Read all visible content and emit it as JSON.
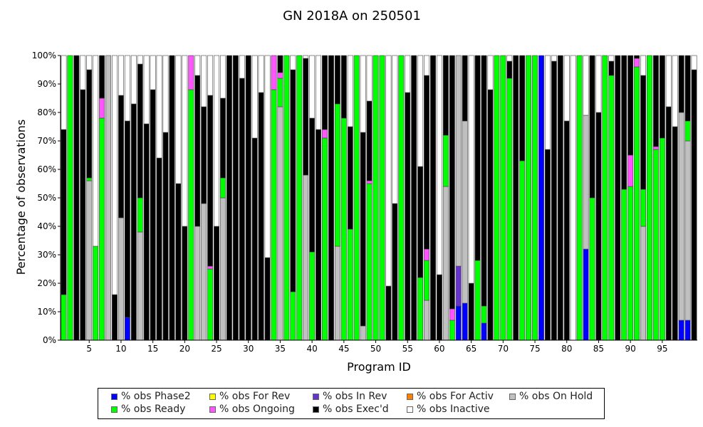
{
  "chart_data": {
    "type": "bar",
    "stacked": true,
    "title": "GN 2018A on 250501",
    "xlabel": "Program ID",
    "ylabel": "Percentage of observations",
    "ylim": [
      0,
      100
    ],
    "yticks": [
      "0%",
      "10%",
      "20%",
      "30%",
      "40%",
      "50%",
      "60%",
      "70%",
      "80%",
      "90%",
      "100%"
    ],
    "xticks": [
      "5",
      "10",
      "15",
      "20",
      "25",
      "30",
      "35",
      "40",
      "45",
      "50",
      "55",
      "60",
      "65",
      "70",
      "75",
      "80",
      "85",
      "90",
      "95"
    ],
    "grid": false,
    "legend_position": "bottom",
    "series": [
      {
        "key": "ph2",
        "name": "% obs Phase2",
        "color": "#0000ff"
      },
      {
        "key": "frv",
        "name": "% obs For Rev",
        "color": "#ffff00"
      },
      {
        "key": "inr",
        "name": "% obs In Rev",
        "color": "#6633cc"
      },
      {
        "key": "fac",
        "name": "% obs For Activ",
        "color": "#ff8000"
      },
      {
        "key": "hold",
        "name": "% obs On Hold",
        "color": "#c0c0c0"
      },
      {
        "key": "rdy",
        "name": "% obs Ready",
        "color": "#00ff00"
      },
      {
        "key": "ong",
        "name": "% obs Ongoing",
        "color": "#ff55ff"
      },
      {
        "key": "exe",
        "name": "% obs Exec'd",
        "color": "#000000"
      },
      {
        "key": "ina",
        "name": "% obs Inactive",
        "color": "#ffffff"
      }
    ],
    "programs": [
      {
        "id": 1,
        "rdy": 16,
        "ina": 26,
        "exe": 58
      },
      {
        "id": 2,
        "rdy": 100
      },
      {
        "id": 3,
        "exe": 100
      },
      {
        "id": 4,
        "ina": 12,
        "exe": 88
      },
      {
        "id": 5,
        "hold": 56,
        "rdy": 1,
        "ina": 5,
        "exe": 38
      },
      {
        "id": 6,
        "rdy": 33,
        "ina": 67
      },
      {
        "id": 7,
        "rdy": 78,
        "ong": 7,
        "exe": 15
      },
      {
        "id": 8,
        "hold": 100
      },
      {
        "id": 9,
        "ina": 84,
        "exe": 16
      },
      {
        "id": 10,
        "hold": 43,
        "ina": 14,
        "exe": 43
      },
      {
        "id": 11,
        "ph2": 8,
        "ina": 23,
        "exe": 69
      },
      {
        "id": 12,
        "ina": 17,
        "exe": 83
      },
      {
        "id": 13,
        "hold": 38,
        "rdy": 12,
        "ina": 3,
        "exe": 47
      },
      {
        "id": 14,
        "ina": 24,
        "exe": 76
      },
      {
        "id": 15,
        "ina": 12,
        "exe": 88
      },
      {
        "id": 16,
        "ina": 36,
        "exe": 64
      },
      {
        "id": 17,
        "ina": 27,
        "exe": 73
      },
      {
        "id": 18,
        "exe": 100
      },
      {
        "id": 19,
        "ina": 45,
        "exe": 55
      },
      {
        "id": 20,
        "ina": 60,
        "exe": 40
      },
      {
        "id": 21,
        "rdy": 88,
        "ong": 12
      },
      {
        "id": 22,
        "hold": 40,
        "ina": 7,
        "exe": 53
      },
      {
        "id": 23,
        "hold": 48,
        "ina": 18,
        "exe": 34
      },
      {
        "id": 24,
        "rdy": 25,
        "ong": 1,
        "ina": 14,
        "exe": 60
      },
      {
        "id": 25,
        "ina": 60,
        "exe": 40
      },
      {
        "id": 26,
        "hold": 50,
        "rdy": 7,
        "ina": 15,
        "exe": 28
      },
      {
        "id": 27,
        "exe": 100
      },
      {
        "id": 28,
        "exe": 100
      },
      {
        "id": 29,
        "ina": 8,
        "exe": 92
      },
      {
        "id": 30,
        "exe": 100
      },
      {
        "id": 31,
        "ina": 29,
        "exe": 71
      },
      {
        "id": 32,
        "ina": 13,
        "exe": 87
      },
      {
        "id": 33,
        "ina": 71,
        "exe": 29
      },
      {
        "id": 34,
        "rdy": 88,
        "ong": 12
      },
      {
        "id": 35,
        "hold": 82,
        "rdy": 10,
        "ong": 2,
        "exe": 6
      },
      {
        "id": 36,
        "rdy": 100
      },
      {
        "id": 37,
        "rdy": 17,
        "ina": 5,
        "exe": 78
      },
      {
        "id": 38,
        "rdy": 100
      },
      {
        "id": 39,
        "hold": 58,
        "ina": 1,
        "exe": 41
      },
      {
        "id": 40,
        "rdy": 31,
        "ina": 22,
        "exe": 47
      },
      {
        "id": 41,
        "ina": 26,
        "exe": 74
      },
      {
        "id": 42,
        "rdy": 71,
        "ong": 3,
        "exe": 26
      },
      {
        "id": 43,
        "exe": 100
      },
      {
        "id": 44,
        "hold": 33,
        "rdy": 50,
        "exe": 17
      },
      {
        "id": 45,
        "rdy": 78,
        "exe": 22
      },
      {
        "id": 46,
        "rdy": 39,
        "ina": 25,
        "exe": 36
      },
      {
        "id": 47,
        "rdy": 100
      },
      {
        "id": 48,
        "hold": 5,
        "ina": 27,
        "exe": 68
      },
      {
        "id": 49,
        "rdy": 55,
        "ong": 1,
        "ina": 16,
        "exe": 28
      },
      {
        "id": 50,
        "rdy": 100
      },
      {
        "id": 51,
        "rdy": 100
      },
      {
        "id": 52,
        "ina": 81,
        "exe": 19
      },
      {
        "id": 53,
        "ina": 52,
        "exe": 48
      },
      {
        "id": 54,
        "rdy": 100
      },
      {
        "id": 55,
        "ina": 13,
        "exe": 87
      },
      {
        "id": 56,
        "exe": 100
      },
      {
        "id": 57,
        "rdy": 22,
        "ina": 39,
        "exe": 39
      },
      {
        "id": 58,
        "hold": 14,
        "rdy": 14,
        "ong": 4,
        "ina": 7,
        "exe": 61
      },
      {
        "id": 59,
        "exe": 100
      },
      {
        "id": 60,
        "ina": 77,
        "exe": 23
      },
      {
        "id": 61,
        "hold": 54,
        "rdy": 18,
        "exe": 28
      },
      {
        "id": 62,
        "rdy": 7,
        "ong": 4,
        "exe": 89
      },
      {
        "id": 63,
        "ph2": 12,
        "inr": 14,
        "hold": 74
      },
      {
        "id": 64,
        "ph2": 13,
        "hold": 64,
        "exe": 23
      },
      {
        "id": 65,
        "ina": 80,
        "exe": 20
      },
      {
        "id": 66,
        "rdy": 28,
        "exe": 72
      },
      {
        "id": 67,
        "ph2": 6,
        "rdy": 6,
        "exe": 88
      },
      {
        "id": 68,
        "ina": 12,
        "exe": 88
      },
      {
        "id": 69,
        "rdy": 100
      },
      {
        "id": 70,
        "rdy": 100
      },
      {
        "id": 71,
        "rdy": 92,
        "ina": 2,
        "exe": 6
      },
      {
        "id": 72,
        "exe": 100
      },
      {
        "id": 73,
        "rdy": 63,
        "exe": 37
      },
      {
        "id": 74,
        "rdy": 100
      },
      {
        "id": 75,
        "rdy": 100
      },
      {
        "id": 76,
        "ph2": 100
      },
      {
        "id": 77,
        "ina": 33,
        "exe": 67
      },
      {
        "id": 78,
        "ina": 2,
        "exe": 98
      },
      {
        "id": 79,
        "exe": 100
      },
      {
        "id": 80,
        "ina": 23,
        "exe": 77
      },
      {
        "id": 81,
        "ina": 100
      },
      {
        "id": 82,
        "rdy": 100
      },
      {
        "id": 83,
        "ph2": 32,
        "hold": 47,
        "ina": 21
      },
      {
        "id": 84,
        "rdy": 50,
        "exe": 50
      },
      {
        "id": 85,
        "ina": 20,
        "exe": 80
      },
      {
        "id": 86,
        "rdy": 100
      },
      {
        "id": 87,
        "rdy": 93,
        "ina": 2,
        "exe": 5
      },
      {
        "id": 88,
        "exe": 100
      },
      {
        "id": 89,
        "rdy": 53,
        "exe": 47
      },
      {
        "id": 90,
        "rdy": 54,
        "ong": 11,
        "exe": 35
      },
      {
        "id": 91,
        "rdy": 96,
        "ong": 3,
        "exe": 1
      },
      {
        "id": 92,
        "hold": 40,
        "rdy": 13,
        "ina": 7,
        "exe": 40
      },
      {
        "id": 93,
        "rdy": 100
      },
      {
        "id": 94,
        "rdy": 67,
        "ong": 1,
        "exe": 32
      },
      {
        "id": 95,
        "rdy": 71,
        "exe": 29
      },
      {
        "id": 96,
        "ina": 18,
        "exe": 82
      },
      {
        "id": 97,
        "ina": 25,
        "exe": 75
      },
      {
        "id": 98,
        "ph2": 7,
        "hold": 73,
        "exe": 20
      },
      {
        "id": 99,
        "ph2": 7,
        "hold": 63,
        "rdy": 7,
        "exe": 23
      },
      {
        "id": 100,
        "ina": 5,
        "exe": 95
      }
    ]
  }
}
